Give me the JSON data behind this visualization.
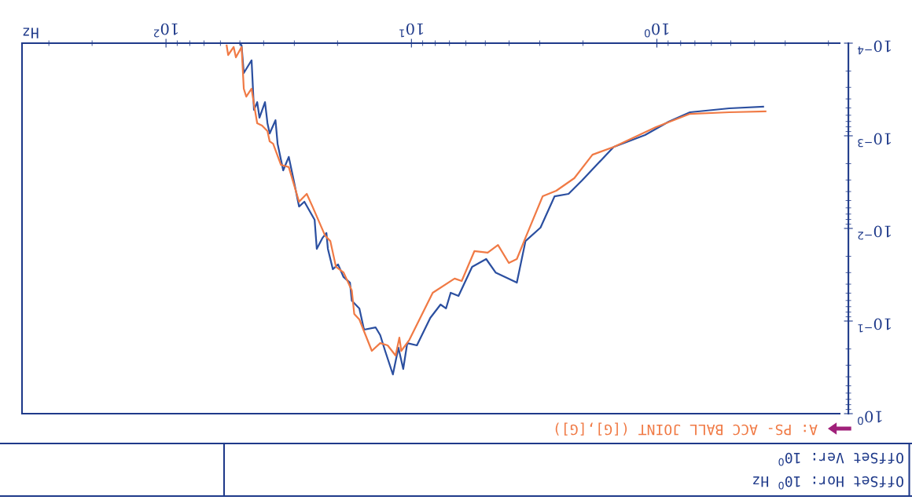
{
  "chart_data": {
    "type": "line",
    "xlabel": "Hz",
    "log": "xy",
    "legend": "bottom",
    "grid": false,
    "marker": "none",
    "line_style": "solid",
    "xlim": [
      386,
      0.18
    ],
    "ylim": [
      1,
      0.0001
    ],
    "xticks": [
      {
        "value": 100,
        "label": "10$^{2}$"
      },
      {
        "value": 10,
        "label": "10$^{1}$"
      },
      {
        "value": 1,
        "label": "10$^{0}$"
      }
    ],
    "yticks": [
      {
        "value": 1,
        "label": "10$^{0}$"
      },
      {
        "value": 0.1,
        "label": "10$^{−1}$"
      },
      {
        "value": 0.01,
        "label": "10$^{−2}$"
      },
      {
        "value": 0.001,
        "label": "10$^{−3}$"
      },
      {
        "value": 0.0001,
        "label": "10$^{−4}$"
      }
    ],
    "series": [
      {
        "color": "#2b4fa0",
        "x": [
          0.369,
          0.507,
          0.733,
          0.895,
          1.117,
          1.5,
          2.02,
          2.29,
          2.61,
          2.98,
          3.43,
          3.72,
          4.54,
          4.96,
          5.66,
          6.43,
          6.92,
          7.23,
          7.61,
          8.38,
          9.5,
          10.4,
          10.8,
          11.3,
          11.9,
          12.8,
          13.4,
          14.0,
          15.6,
          16.3,
          17.5,
          17.8,
          18.9,
          19.9,
          20.9,
          21.9,
          22.2,
          23.0,
          24.3,
          24.8,
          27.3,
          28.7,
          30.3,
          31.6,
          33.3,
          35.1,
          35.8,
          37.8,
          38.6,
          39.5,
          41.6,
          42.5,
          43.8,
          44.8,
          48.2,
          49.2,
          50.0
        ],
        "values": [
          0.000485,
          0.000505,
          0.000557,
          0.000703,
          0.00098,
          0.00132,
          0.00304,
          0.00424,
          0.0045,
          0.0098,
          0.0137,
          0.0385,
          0.0299,
          0.0214,
          0.026,
          0.0536,
          0.0495,
          0.0731,
          0.0664,
          0.0925,
          0.183,
          0.173,
          0.329,
          0.194,
          0.377,
          0.21,
          0.142,
          0.117,
          0.124,
          0.0731,
          0.0603,
          0.0385,
          0.0335,
          0.0245,
          0.0276,
          0.0166,
          0.0112,
          0.0126,
          0.0166,
          0.00807,
          0.00515,
          0.0058,
          0.00287,
          0.00169,
          0.00236,
          0.00122,
          0.000678,
          0.000944,
          0.000731,
          0.000433,
          0.000638,
          0.000433,
          0.000525,
          0.000153,
          0.00021,
          0.000106,
          0.0001
        ]
      },
      {
        "name": "A: PS- ACC BALL JOINT ([G],[G])",
        "color": "#f07a45",
        "x": [
          0.361,
          0.507,
          0.733,
          1.01,
          1.5,
          1.83,
          2.17,
          2.57,
          2.92,
          3.43,
          3.72,
          4.01,
          4.44,
          4.89,
          5.54,
          6.24,
          6.67,
          8.19,
          10.2,
          11.0,
          11.2,
          11.6,
          12.5,
          13.4,
          14.5,
          16.3,
          17.1,
          17.5,
          18.9,
          20.3,
          21.4,
          22.5,
          25.3,
          26.7,
          28.7,
          31.6,
          34.0,
          36.6,
          37.8,
          38.6,
          40.6,
          42.5,
          43.8,
          44.8,
          47.1,
          48.2,
          49.2,
          51.9,
          53.0,
          55.8,
          56.6
        ],
        "values": [
          0.000546,
          0.000557,
          0.00058,
          0.000807,
          0.00132,
          0.0016,
          0.00287,
          0.00392,
          0.0045,
          0.0126,
          0.0214,
          0.0236,
          0.0151,
          0.0183,
          0.0176,
          0.037,
          0.0348,
          0.0495,
          0.16,
          0.21,
          0.151,
          0.236,
          0.183,
          0.173,
          0.21,
          0.0962,
          0.0839,
          0.0467,
          0.0299,
          0.026,
          0.0137,
          0.0119,
          0.0058,
          0.00424,
          0.00515,
          0.00218,
          0.00206,
          0.00122,
          0.00115,
          0.000889,
          0.000776,
          0.000731,
          0.000458,
          0.00031,
          0.000377,
          0.00031,
          0.00011,
          0.000142,
          0.00011,
          0.000134,
          0.000106
        ]
      }
    ],
    "annotations": [
      "OffSet Ver: 10$^{0}$",
      "OffSet Hor: 10$^{0}$ Hz"
    ]
  }
}
